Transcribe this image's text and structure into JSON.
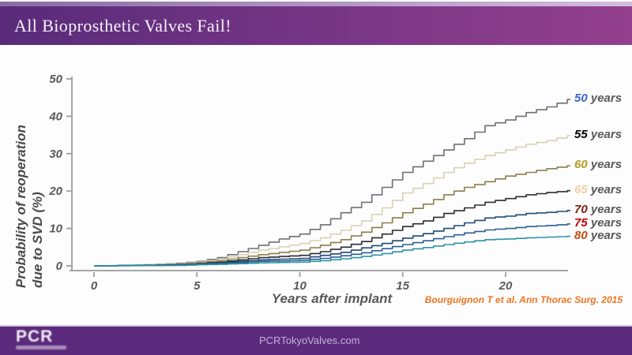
{
  "slide": {
    "title": "All Bioprosthetic Valves Fail!",
    "citation": "Bourguignon T et al. Ann Thorac Surg. 2015",
    "footer": {
      "logo_text": "PCR",
      "site": "PCRTokyoValves.com"
    }
  },
  "colors": {
    "header_gradient_from": "#582b7a",
    "header_gradient_to": "#93408e",
    "footer_bg": "#5b2a7d",
    "footer_text": "#c3b2d6",
    "citation_orange": "#ee7420",
    "axis": "#a6a6a6",
    "tick_text": "#595959",
    "years_suffix_text": "#595959"
  },
  "chart_data": {
    "type": "line",
    "title": "",
    "xlabel": "Years after implant",
    "ylabel": "Probability of reoperation due to SVD (%)",
    "ylabel_line1": "Probability of reoperation",
    "ylabel_line2": "due to SVD (%)",
    "xlim": [
      0,
      23
    ],
    "ylim": [
      0,
      50
    ],
    "xticks": [
      0,
      5,
      10,
      15,
      20
    ],
    "yticks": [
      0,
      10,
      20,
      30,
      40,
      50
    ],
    "grid": false,
    "legend_position": "right of curve ends",
    "series": [
      {
        "name": "50 years",
        "label_value": "50",
        "label_suffix": " years",
        "color": "#6e6e76",
        "label_color": "#3a66c8",
        "points": [
          [
            0,
            0
          ],
          [
            1,
            0.1
          ],
          [
            2,
            0.2
          ],
          [
            3,
            0.4
          ],
          [
            4,
            0.7
          ],
          [
            5,
            1.2
          ],
          [
            6,
            2.2
          ],
          [
            7,
            3.8
          ],
          [
            8,
            5.5
          ],
          [
            9,
            7.2
          ],
          [
            10,
            8.5
          ],
          [
            11,
            11
          ],
          [
            12,
            14.2
          ],
          [
            13,
            17
          ],
          [
            14,
            21
          ],
          [
            15,
            25
          ],
          [
            16,
            28
          ],
          [
            17,
            31
          ],
          [
            18,
            34
          ],
          [
            19,
            37.5
          ],
          [
            20,
            39
          ],
          [
            21,
            41
          ],
          [
            22,
            42.5
          ],
          [
            23,
            44.5
          ]
        ]
      },
      {
        "name": "55 years",
        "label_value": "55",
        "label_suffix": " years",
        "color": "#d8d2b2",
        "label_color": "#000000",
        "points": [
          [
            0,
            0
          ],
          [
            2,
            0.2
          ],
          [
            3,
            0.3
          ],
          [
            4,
            0.5
          ],
          [
            5,
            1
          ],
          [
            6,
            1.8
          ],
          [
            7,
            3
          ],
          [
            8,
            4.2
          ],
          [
            9,
            5.1
          ],
          [
            10,
            6
          ],
          [
            11,
            7.5
          ],
          [
            12,
            9.5
          ],
          [
            13,
            12
          ],
          [
            14,
            15.5
          ],
          [
            15,
            19.5
          ],
          [
            16,
            22
          ],
          [
            17,
            25
          ],
          [
            18,
            27.5
          ],
          [
            19,
            29.5
          ],
          [
            20,
            31
          ],
          [
            21,
            32.5
          ],
          [
            22,
            33.5
          ],
          [
            23,
            34.8
          ]
        ]
      },
      {
        "name": "60 years",
        "label_value": "60",
        "label_suffix": " years",
        "color": "#8a7f49",
        "label_color": "#b09d1d",
        "points": [
          [
            0,
            0
          ],
          [
            3,
            0.2
          ],
          [
            4,
            0.4
          ],
          [
            5,
            0.8
          ],
          [
            6,
            1.4
          ],
          [
            7,
            2.2
          ],
          [
            8,
            3
          ],
          [
            9,
            3.6
          ],
          [
            10,
            4.2
          ],
          [
            11,
            5.5
          ],
          [
            12,
            7
          ],
          [
            13,
            9
          ],
          [
            14,
            11.5
          ],
          [
            15,
            14.2
          ],
          [
            16,
            16.5
          ],
          [
            17,
            19
          ],
          [
            18,
            21
          ],
          [
            19,
            22.5
          ],
          [
            20,
            24
          ],
          [
            21,
            25
          ],
          [
            22,
            26
          ],
          [
            23,
            26.8
          ]
        ]
      },
      {
        "name": "65 years",
        "label_value": "65",
        "label_suffix": " years",
        "color": "#2b2b33",
        "label_color": "#f2cfa4",
        "points": [
          [
            0,
            0
          ],
          [
            3,
            0.2
          ],
          [
            4,
            0.3
          ],
          [
            5,
            0.6
          ],
          [
            6,
            1
          ],
          [
            7,
            1.6
          ],
          [
            8,
            2.2
          ],
          [
            9,
            2.5
          ],
          [
            10,
            2.8
          ],
          [
            11,
            3.8
          ],
          [
            12,
            5
          ],
          [
            13,
            6.5
          ],
          [
            14,
            8.5
          ],
          [
            15,
            10.5
          ],
          [
            16,
            12
          ],
          [
            17,
            14
          ],
          [
            18,
            15.5
          ],
          [
            19,
            17
          ],
          [
            20,
            18
          ],
          [
            21,
            19
          ],
          [
            22,
            19.6
          ],
          [
            23,
            20.1
          ]
        ]
      },
      {
        "name": "70 years",
        "label_value": "70",
        "label_suffix": " years",
        "color": "#1c4a75",
        "label_color": "#7d1f10",
        "points": [
          [
            0,
            0
          ],
          [
            4,
            0.2
          ],
          [
            5,
            0.5
          ],
          [
            6,
            0.8
          ],
          [
            7,
            1.2
          ],
          [
            8,
            1.6
          ],
          [
            9,
            1.8
          ],
          [
            10,
            2
          ],
          [
            11,
            2.8
          ],
          [
            12,
            3.6
          ],
          [
            13,
            4.8
          ],
          [
            14,
            6
          ],
          [
            15,
            7.4
          ],
          [
            16,
            8.6
          ],
          [
            17,
            10
          ],
          [
            18,
            11.5
          ],
          [
            19,
            12.8
          ],
          [
            20,
            13.3
          ],
          [
            21,
            14
          ],
          [
            22,
            14.3
          ],
          [
            23,
            14.8
          ]
        ]
      },
      {
        "name": "75 years",
        "label_value": "75",
        "label_suffix": " years",
        "color": "#2a5f93",
        "label_color": "#c00000",
        "points": [
          [
            0,
            0
          ],
          [
            4,
            0.2
          ],
          [
            5,
            0.4
          ],
          [
            6,
            0.6
          ],
          [
            7,
            0.9
          ],
          [
            8,
            1.2
          ],
          [
            9,
            1.3
          ],
          [
            10,
            1.5
          ],
          [
            11,
            2
          ],
          [
            12,
            2.7
          ],
          [
            13,
            3.5
          ],
          [
            14,
            4.6
          ],
          [
            15,
            5.7
          ],
          [
            16,
            6.7
          ],
          [
            17,
            7.8
          ],
          [
            18,
            8.8
          ],
          [
            19,
            9.6
          ],
          [
            20,
            10
          ],
          [
            21,
            10.5
          ],
          [
            22,
            10.8
          ],
          [
            23,
            11.2
          ]
        ]
      },
      {
        "name": "80 years",
        "label_value": "80",
        "label_suffix": " years",
        "color": "#2d93a6",
        "label_color": "#bf4e12",
        "points": [
          [
            0,
            0
          ],
          [
            4,
            0.1
          ],
          [
            5,
            0.3
          ],
          [
            6,
            0.4
          ],
          [
            7,
            0.6
          ],
          [
            8,
            0.8
          ],
          [
            9,
            0.9
          ],
          [
            10,
            1
          ],
          [
            11,
            1.4
          ],
          [
            12,
            1.9
          ],
          [
            13,
            2.5
          ],
          [
            14,
            3.3
          ],
          [
            15,
            4.2
          ],
          [
            16,
            4.9
          ],
          [
            17,
            5.7
          ],
          [
            18,
            6.4
          ],
          [
            19,
            7
          ],
          [
            20,
            7.2
          ],
          [
            21,
            7.5
          ],
          [
            22,
            7.7
          ],
          [
            23,
            7.9
          ]
        ]
      }
    ]
  }
}
